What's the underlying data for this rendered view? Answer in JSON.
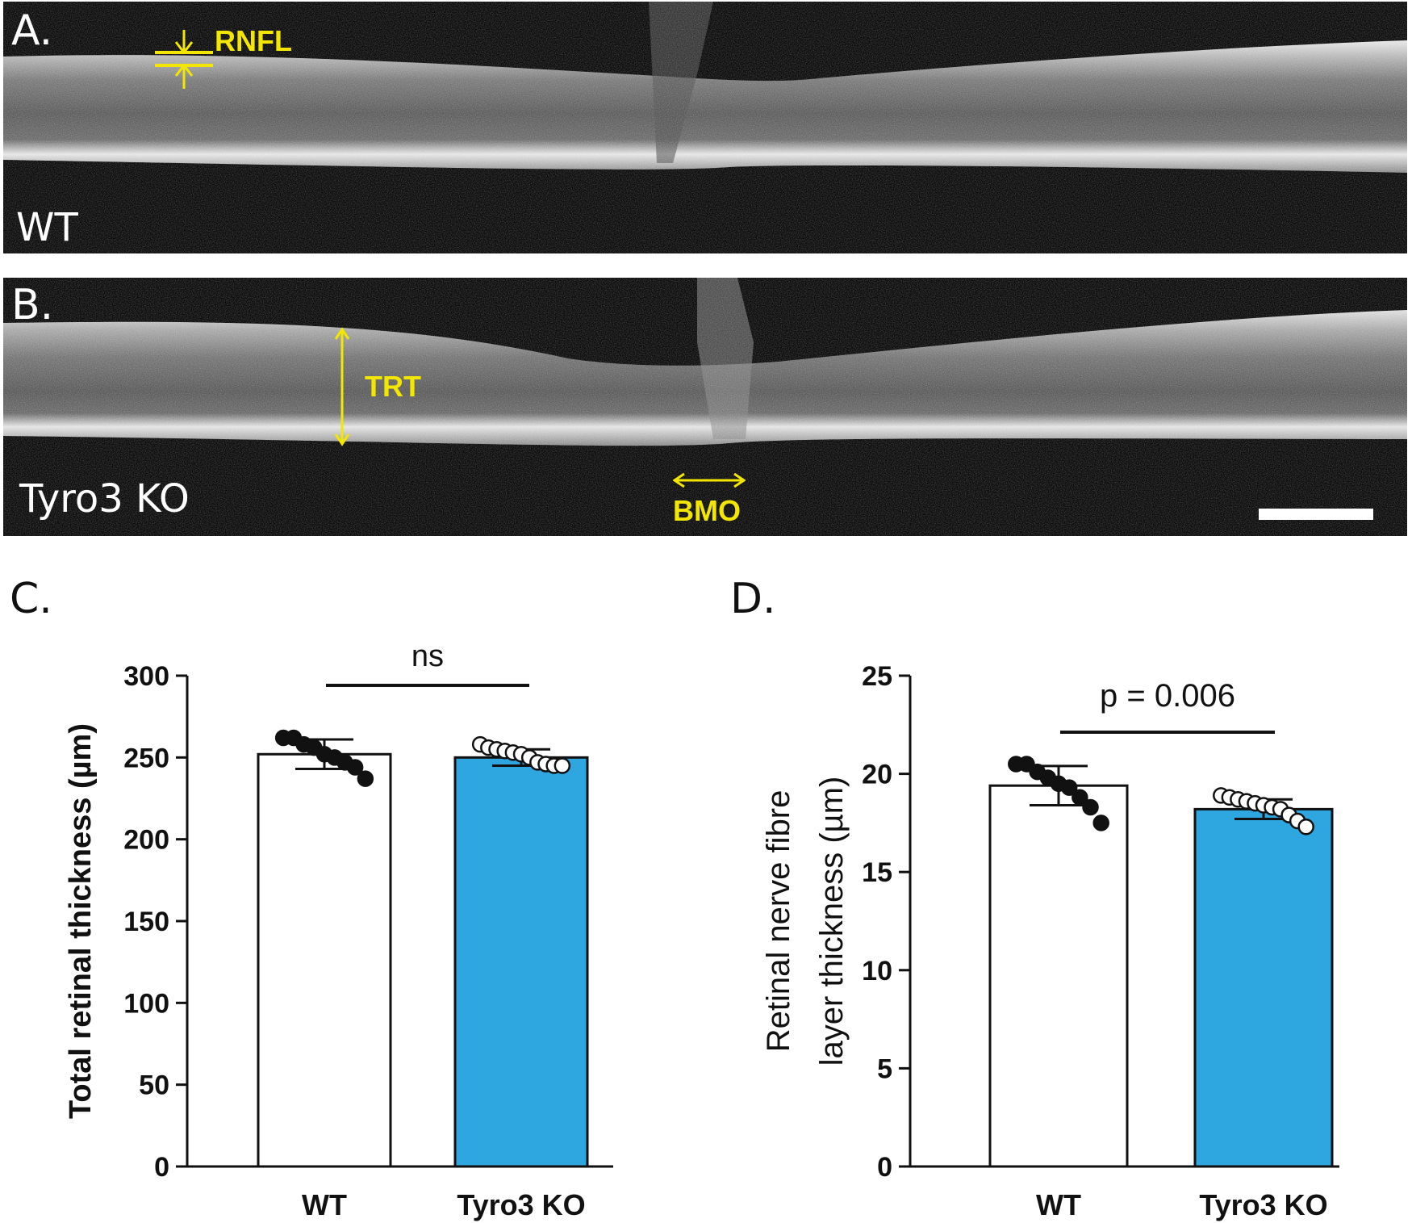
{
  "panel_a": {
    "letter": "A.",
    "group": "WT",
    "annotation": "RNFL"
  },
  "panel_b": {
    "letter": "B.",
    "group": "Tyro3 KO",
    "annotation_trt": "TRT",
    "annotation_bmo": "BMO"
  },
  "colors": {
    "annotation": "#f3e600",
    "wt_bar": "#ffffff",
    "ko_bar": "#2ea7e0",
    "axis": "#111111"
  },
  "chart_data": [
    {
      "panel_letter": "C.",
      "type": "bar",
      "categories": [
        "WT",
        "Tyro3 KO"
      ],
      "values": [
        252,
        250
      ],
      "sd": [
        9,
        5
      ],
      "ylabel": "Total retinal thickness  (µm)",
      "ylim": [
        0,
        300
      ],
      "yticks": [
        0,
        50,
        100,
        150,
        200,
        250,
        300
      ],
      "annotation": "ns",
      "points": [
        [
          262,
          262,
          258,
          256,
          252,
          250,
          247,
          244,
          237
        ],
        [
          258,
          256,
          255,
          254,
          253,
          252,
          250,
          247,
          246,
          245,
          245
        ]
      ]
    },
    {
      "panel_letter": "D.",
      "type": "bar",
      "categories": [
        "WT",
        "Tyro3 KO"
      ],
      "values": [
        19.4,
        18.2
      ],
      "sd": [
        1.0,
        0.5
      ],
      "ylabel": [
        "Retinal nerve fibre",
        "layer thickness (µm)"
      ],
      "ylim": [
        0,
        25
      ],
      "yticks": [
        0,
        5,
        10,
        15,
        20,
        25
      ],
      "annotation": "p = 0.006",
      "points": [
        [
          20.5,
          20.5,
          20.1,
          19.8,
          19.5,
          19.3,
          18.8,
          18.3,
          17.5
        ],
        [
          18.9,
          18.8,
          18.7,
          18.6,
          18.5,
          18.4,
          18.3,
          18.2,
          17.9,
          17.6,
          17.3
        ]
      ]
    }
  ]
}
